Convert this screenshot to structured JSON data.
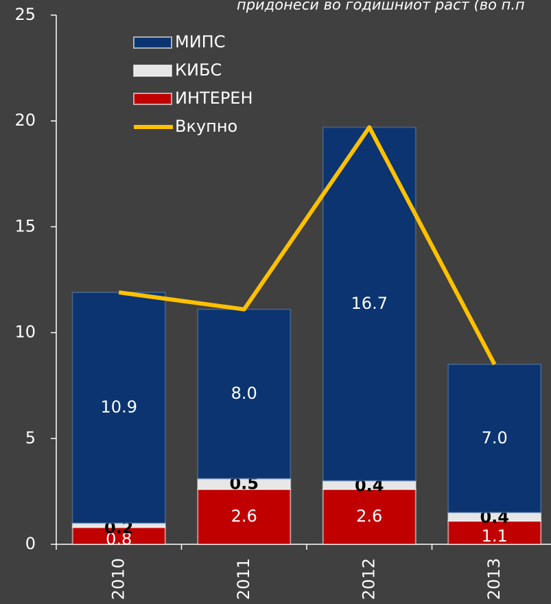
{
  "chart_data": {
    "type": "stacked_bar_line",
    "title": "придонеси во годишниот раст (во п.п",
    "categories": [
      "2010",
      "2011",
      "2012",
      "2013"
    ],
    "series": [
      {
        "name": "ИНТЕРЕН",
        "color": "#c00000",
        "values": [
          0.8,
          2.6,
          2.6,
          1.1
        ]
      },
      {
        "name": "КИБС",
        "color": "#e6e6e6",
        "values": [
          0.2,
          0.5,
          0.4,
          0.4
        ]
      },
      {
        "name": "МИПС",
        "color": "#0b3470",
        "values": [
          10.9,
          8.0,
          16.7,
          7.0
        ],
        "value_labels": [
          "10.9",
          "8.0",
          "16.7",
          "7.0"
        ]
      },
      {
        "name": "Вкупно",
        "color": "#ffc000",
        "values": [
          11.9,
          11.1,
          19.7,
          8.5
        ],
        "type": "line"
      }
    ],
    "ylim": [
      0,
      25
    ],
    "yticks": [
      0,
      5,
      10,
      15,
      20,
      25
    ]
  }
}
